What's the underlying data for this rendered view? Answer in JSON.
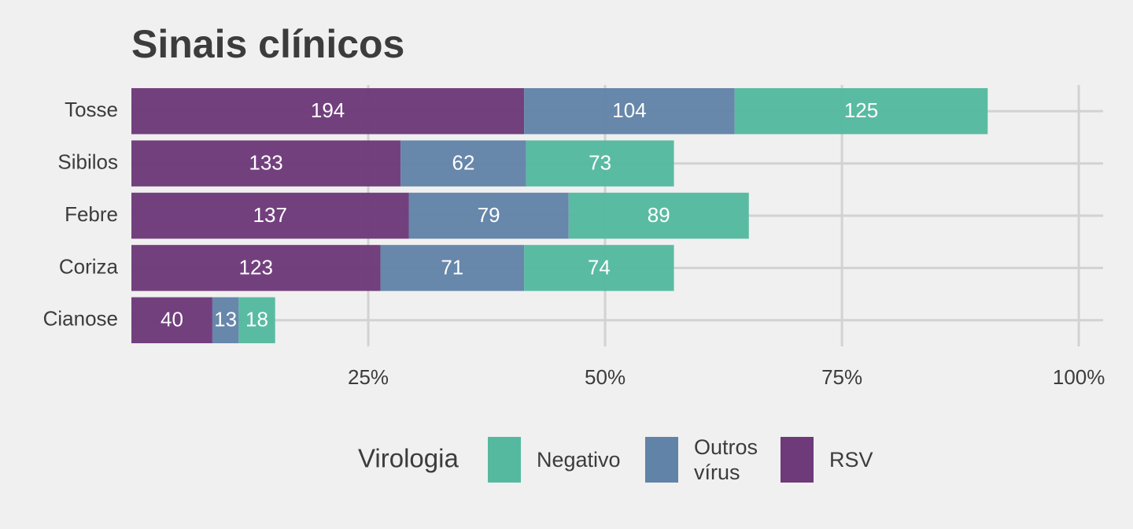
{
  "chart_data": {
    "type": "stacked-barh",
    "title": "Sinais clínicos",
    "categories": [
      "Tosse",
      "Sibilos",
      "Febre",
      "Coriza",
      "Cianose"
    ],
    "series": [
      {
        "name": "RSV",
        "color": "#6e3a7a",
        "values": [
          194,
          133,
          137,
          123,
          40
        ]
      },
      {
        "name": "Outros vírus",
        "color": "#6283a8",
        "values": [
          104,
          62,
          79,
          71,
          13
        ]
      },
      {
        "name": "Negativo",
        "color": "#55b9a0",
        "values": [
          125,
          73,
          89,
          74,
          18
        ]
      }
    ],
    "xlim": [
      0,
      480
    ],
    "xticks": [
      {
        "value": 117,
        "label": "25%"
      },
      {
        "value": 234,
        "label": "50%"
      },
      {
        "value": 351,
        "label": "75%"
      },
      {
        "value": 468,
        "label": "100%"
      }
    ],
    "legend_title": "Virologia",
    "grid": true
  }
}
